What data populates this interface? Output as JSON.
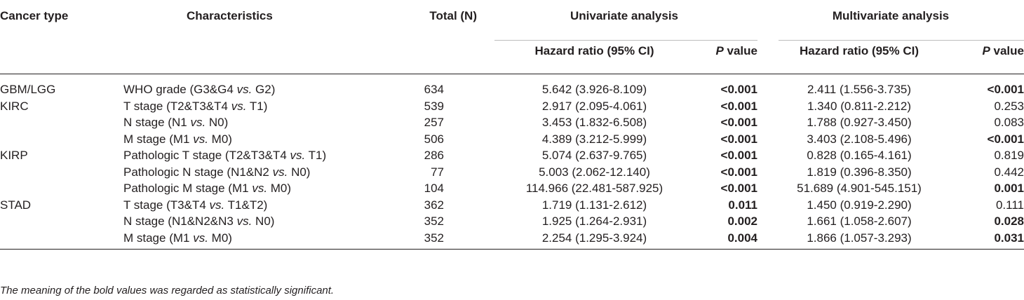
{
  "table": {
    "headers": {
      "cancer_type": "Cancer type",
      "characteristics": "Characteristics",
      "total": "Total (N)",
      "univariate": "Univariate analysis",
      "multivariate": "Multivariate analysis",
      "hr_label": "Hazard ratio (95% CI)",
      "p_italic": "P",
      "p_rest": " value"
    },
    "rows": [
      {
        "cancer": "GBM/LGG",
        "char": "WHO grade (G3&G4 ",
        "vs": "vs.",
        "char_tail": " G2)",
        "total": "634",
        "uni_hr": "5.642 (3.926-8.109)",
        "uni_p": "<0.001",
        "multi_hr": "2.411 (1.556-3.735)",
        "multi_p": "<0.001"
      },
      {
        "cancer": "KIRC",
        "char": "T stage (T2&T3&T4 ",
        "vs": "vs.",
        "char_tail": " T1)",
        "total": "539",
        "uni_hr": "2.917 (2.095-4.061)",
        "uni_p": "<0.001",
        "multi_hr": "1.340 (0.811-2.212)",
        "multi_p": "0.253"
      },
      {
        "cancer": "",
        "char": "N stage (N1 ",
        "vs": "vs.",
        "char_tail": " N0)",
        "total": "257",
        "uni_hr": "3.453 (1.832-6.508)",
        "uni_p": "<0.001",
        "multi_hr": "1.788 (0.927-3.450)",
        "multi_p": "0.083"
      },
      {
        "cancer": "",
        "char": "M stage (M1 ",
        "vs": "vs.",
        "char_tail": " M0)",
        "total": "506",
        "uni_hr": "4.389 (3.212-5.999)",
        "uni_p": "<0.001",
        "multi_hr": "3.403 (2.108-5.496)",
        "multi_p": "<0.001"
      },
      {
        "cancer": "KIRP",
        "char": "Pathologic T stage (T2&T3&T4 ",
        "vs": "vs.",
        "char_tail": " T1)",
        "total": "286",
        "uni_hr": "5.074 (2.637-9.765)",
        "uni_p": "<0.001",
        "multi_hr": "0.828 (0.165-4.161)",
        "multi_p": "0.819"
      },
      {
        "cancer": "",
        "char": "Pathologic N stage (N1&N2 ",
        "vs": "vs.",
        "char_tail": " N0)",
        "total": "77",
        "uni_hr": "5.003 (2.062-12.140)",
        "uni_p": "<0.001",
        "multi_hr": "1.819 (0.396-8.350)",
        "multi_p": "0.442"
      },
      {
        "cancer": "",
        "char": "Pathologic M stage (M1 ",
        "vs": "vs.",
        "char_tail": " M0)",
        "total": "104",
        "uni_hr": "114.966 (22.481-587.925)",
        "uni_p": "<0.001",
        "multi_hr": "51.689 (4.901-545.151)",
        "multi_p": "0.001"
      },
      {
        "cancer": "STAD",
        "char": "T stage (T3&T4 ",
        "vs": "vs.",
        "char_tail": " T1&T2)",
        "total": "362",
        "uni_hr": "1.719 (1.131-2.612)",
        "uni_p": "0.011",
        "multi_hr": "1.450 (0.919-2.290)",
        "multi_p": "0.111"
      },
      {
        "cancer": "",
        "char": "N stage (N1&N2&N3 ",
        "vs": "vs.",
        "char_tail": " N0)",
        "total": "352",
        "uni_hr": "1.925 (1.264-2.931)",
        "uni_p": "0.002",
        "multi_hr": "1.661 (1.058-2.607)",
        "multi_p": "0.028"
      },
      {
        "cancer": "",
        "char": "M stage (M1 ",
        "vs": "vs.",
        "char_tail": " M0)",
        "total": "352",
        "uni_hr": "2.254 (1.295-3.924)",
        "uni_p": "0.004",
        "multi_hr": "1.866 (1.057-3.293)",
        "multi_p": "0.031"
      }
    ],
    "significant": {
      "uni_p": [
        true,
        true,
        true,
        true,
        true,
        true,
        true,
        true,
        true,
        true
      ],
      "multi_p": [
        true,
        false,
        false,
        true,
        false,
        false,
        true,
        false,
        true,
        true
      ]
    },
    "footnote": "The meaning of the bold values was regarded as statistically significant."
  }
}
